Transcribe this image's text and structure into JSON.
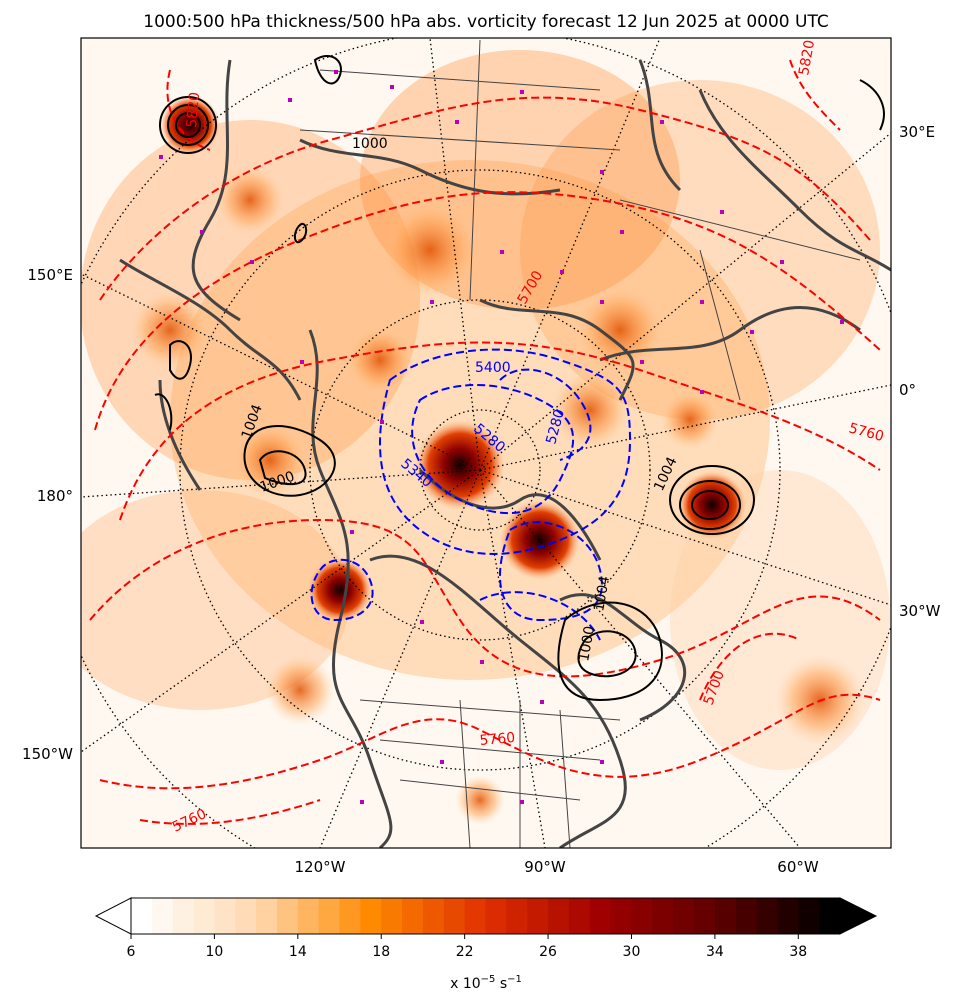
{
  "title": "1000:500 hPa thickness/500 hPa abs. vorticity forecast 12 Jun 2025 at 0000 UTC",
  "lon_labels": {
    "right": [
      "30°E",
      "0°",
      "30°W"
    ],
    "left": [
      "150°E",
      "180°",
      "150°W"
    ],
    "bottom": [
      "120°W",
      "90°W",
      "60°W"
    ]
  },
  "colorbar": {
    "ticks": [
      "6",
      "10",
      "14",
      "18",
      "22",
      "26",
      "30",
      "34",
      "38"
    ],
    "tick_values": [
      6,
      10,
      14,
      18,
      22,
      26,
      30,
      34,
      38
    ],
    "vmin": 6,
    "vmax": 40,
    "step": 1,
    "unit_prefix": "x 10",
    "unit_exp1": "−5",
    "unit_mid": " s",
    "unit_exp2": "−1",
    "colors_stops": [
      "#ffffff",
      "#ffd9b0",
      "#ff8a00",
      "#e03000",
      "#a00000",
      "#600000",
      "#000000"
    ]
  },
  "contour_labels": {
    "thickness_red": [
      "5760",
      "5700",
      "5760",
      "5820",
      "5820",
      "5700",
      "5760"
    ],
    "thickness_blue": [
      "5280",
      "5340",
      "5400",
      "5280"
    ],
    "pressure_black": [
      "1000",
      "1004",
      "1000",
      "1004",
      "1004",
      "1000"
    ]
  },
  "colors": {
    "thickness_warm": "#ff0000",
    "thickness_cold": "#0000ff",
    "pressure": "#000000",
    "coastline": "#444444",
    "highs_lows": "#bb00bb"
  }
}
